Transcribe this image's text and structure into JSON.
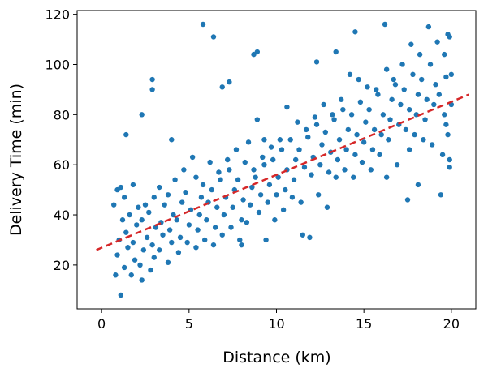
{
  "chart_data": {
    "type": "scatter",
    "title": "",
    "xlabel": "Distance (km)",
    "ylabel": "Delivery Time (min)",
    "xlim": [
      -1.4,
      21.4
    ],
    "ylim": [
      2.5,
      121.5
    ],
    "xticks": [
      0,
      5,
      10,
      15,
      20
    ],
    "yticks": [
      20,
      40,
      60,
      80,
      100,
      120
    ],
    "grid": false,
    "legend": "none",
    "colors": {
      "points": "#1f77b4",
      "trend": "#d62728",
      "axes": "#000000",
      "background": "#ffffff"
    },
    "series": [
      {
        "kind": "scatter",
        "points": [
          [
            1.1,
            8
          ],
          [
            0.8,
            16
          ],
          [
            0.9,
            24
          ],
          [
            1.0,
            30
          ],
          [
            1.2,
            38
          ],
          [
            0.7,
            44
          ],
          [
            0.9,
            50
          ],
          [
            1.1,
            51
          ],
          [
            1.3,
            19
          ],
          [
            1.5,
            27
          ],
          [
            1.4,
            33
          ],
          [
            1.6,
            40
          ],
          [
            1.3,
            47
          ],
          [
            1.4,
            72
          ],
          [
            1.7,
            16
          ],
          [
            1.9,
            22
          ],
          [
            1.8,
            29
          ],
          [
            2.0,
            36
          ],
          [
            2.1,
            43
          ],
          [
            1.8,
            52
          ],
          [
            2.3,
            14
          ],
          [
            2.2,
            20
          ],
          [
            2.4,
            26
          ],
          [
            2.6,
            31
          ],
          [
            2.3,
            38
          ],
          [
            2.5,
            44
          ],
          [
            2.3,
            80
          ],
          [
            2.8,
            18
          ],
          [
            3.0,
            23
          ],
          [
            2.9,
            28
          ],
          [
            3.1,
            35
          ],
          [
            2.7,
            41
          ],
          [
            3.0,
            47
          ],
          [
            2.9,
            90
          ],
          [
            2.9,
            94
          ],
          [
            3.3,
            26
          ],
          [
            3.5,
            32
          ],
          [
            3.4,
            37
          ],
          [
            3.6,
            44
          ],
          [
            3.3,
            51
          ],
          [
            3.8,
            21
          ],
          [
            4.0,
            29
          ],
          [
            3.9,
            34
          ],
          [
            4.1,
            40
          ],
          [
            3.8,
            48
          ],
          [
            4.0,
            70
          ],
          [
            4.2,
            54
          ],
          [
            4.4,
            25
          ],
          [
            4.5,
            31
          ],
          [
            4.3,
            38
          ],
          [
            4.6,
            45
          ],
          [
            4.7,
            58
          ],
          [
            4.9,
            29
          ],
          [
            5.0,
            36
          ],
          [
            5.1,
            42
          ],
          [
            4.8,
            49
          ],
          [
            5.2,
            63
          ],
          [
            5.4,
            27
          ],
          [
            5.5,
            34
          ],
          [
            5.6,
            40
          ],
          [
            5.7,
            47
          ],
          [
            5.4,
            55
          ],
          [
            5.9,
            30
          ],
          [
            6.0,
            38
          ],
          [
            6.1,
            45
          ],
          [
            5.8,
            52
          ],
          [
            6.2,
            61
          ],
          [
            5.8,
            116
          ],
          [
            6.4,
            28
          ],
          [
            6.5,
            35
          ],
          [
            6.6,
            43
          ],
          [
            6.3,
            50
          ],
          [
            6.7,
            57
          ],
          [
            6.4,
            111
          ],
          [
            6.9,
            32
          ],
          [
            7.0,
            40
          ],
          [
            7.1,
            47
          ],
          [
            6.8,
            54
          ],
          [
            7.2,
            62
          ],
          [
            6.9,
            91
          ],
          [
            7.3,
            93
          ],
          [
            7.4,
            35
          ],
          [
            7.5,
            43
          ],
          [
            7.6,
            50
          ],
          [
            7.3,
            58
          ],
          [
            7.7,
            66
          ],
          [
            7.9,
            30
          ],
          [
            8.0,
            38
          ],
          [
            8.1,
            46
          ],
          [
            7.8,
            54
          ],
          [
            8.2,
            61
          ],
          [
            8.0,
            28
          ],
          [
            8.3,
            37
          ],
          [
            8.5,
            44
          ],
          [
            8.6,
            51
          ],
          [
            8.7,
            58
          ],
          [
            8.4,
            69
          ],
          [
            8.7,
            104
          ],
          [
            8.9,
            105
          ],
          [
            8.9,
            78
          ],
          [
            9.0,
            41
          ],
          [
            9.1,
            48
          ],
          [
            8.8,
            55
          ],
          [
            9.2,
            63
          ],
          [
            9.3,
            70
          ],
          [
            9.4,
            30
          ],
          [
            9.5,
            45
          ],
          [
            9.6,
            52
          ],
          [
            9.3,
            60
          ],
          [
            9.7,
            67
          ],
          [
            9.9,
            38
          ],
          [
            10.0,
            48
          ],
          [
            10.1,
            55
          ],
          [
            9.8,
            62
          ],
          [
            10.2,
            70
          ],
          [
            10.4,
            42
          ],
          [
            10.5,
            50
          ],
          [
            10.6,
            58
          ],
          [
            10.3,
            66
          ],
          [
            10.6,
            83
          ],
          [
            10.9,
            47
          ],
          [
            11.0,
            54
          ],
          [
            11.1,
            62
          ],
          [
            10.8,
            70
          ],
          [
            11.2,
            77
          ],
          [
            11.4,
            45
          ],
          [
            11.5,
            32
          ],
          [
            11.6,
            59
          ],
          [
            11.3,
            66
          ],
          [
            11.7,
            74
          ],
          [
            11.9,
            31
          ],
          [
            12.0,
            56
          ],
          [
            12.1,
            63
          ],
          [
            11.8,
            71
          ],
          [
            12.2,
            79
          ],
          [
            12.3,
            101
          ],
          [
            12.4,
            48
          ],
          [
            12.5,
            60
          ],
          [
            12.6,
            68
          ],
          [
            12.3,
            76
          ],
          [
            12.7,
            84
          ],
          [
            12.9,
            43
          ],
          [
            13.0,
            57
          ],
          [
            13.1,
            65
          ],
          [
            12.8,
            73
          ],
          [
            13.2,
            80
          ],
          [
            13.4,
            55
          ],
          [
            13.5,
            62
          ],
          [
            13.6,
            70
          ],
          [
            13.3,
            78
          ],
          [
            13.4,
            105
          ],
          [
            13.7,
            86
          ],
          [
            13.9,
            58
          ],
          [
            14.0,
            66
          ],
          [
            14.1,
            74
          ],
          [
            13.8,
            82
          ],
          [
            14.2,
            96
          ],
          [
            14.4,
            55
          ],
          [
            14.5,
            64
          ],
          [
            14.6,
            72
          ],
          [
            14.3,
            80
          ],
          [
            14.5,
            113
          ],
          [
            14.7,
            94
          ],
          [
            14.9,
            61
          ],
          [
            15.0,
            69
          ],
          [
            15.1,
            77
          ],
          [
            14.8,
            85
          ],
          [
            15.2,
            91
          ],
          [
            15.4,
            58
          ],
          [
            15.5,
            66
          ],
          [
            15.6,
            74
          ],
          [
            15.3,
            82
          ],
          [
            15.7,
            90
          ],
          [
            15.9,
            64
          ],
          [
            16.0,
            72
          ],
          [
            16.1,
            80
          ],
          [
            15.8,
            88
          ],
          [
            16.2,
            116
          ],
          [
            16.3,
            98
          ],
          [
            16.4,
            70
          ],
          [
            16.5,
            78
          ],
          [
            16.6,
            86
          ],
          [
            16.3,
            55
          ],
          [
            16.7,
            94
          ],
          [
            16.9,
            60
          ],
          [
            17.0,
            76
          ],
          [
            17.1,
            84
          ],
          [
            16.8,
            92
          ],
          [
            17.2,
            100
          ],
          [
            17.4,
            74
          ],
          [
            17.5,
            46
          ],
          [
            17.6,
            82
          ],
          [
            17.3,
            90
          ],
          [
            17.7,
            108
          ],
          [
            17.9,
            72
          ],
          [
            18.0,
            80
          ],
          [
            18.1,
            88
          ],
          [
            17.8,
            96
          ],
          [
            18.2,
            104
          ],
          [
            18.1,
            52
          ],
          [
            18.4,
            70
          ],
          [
            18.5,
            78
          ],
          [
            18.6,
            86
          ],
          [
            18.3,
            94
          ],
          [
            18.7,
            115
          ],
          [
            18.9,
            68
          ],
          [
            19.0,
            84
          ],
          [
            19.1,
            92
          ],
          [
            18.8,
            100
          ],
          [
            19.2,
            109
          ],
          [
            19.4,
            48
          ],
          [
            19.5,
            64
          ],
          [
            19.6,
            80
          ],
          [
            19.3,
            88
          ],
          [
            19.6,
            104
          ],
          [
            19.7,
            95
          ],
          [
            19.8,
            72
          ],
          [
            19.9,
            59
          ],
          [
            20.0,
            84
          ],
          [
            19.8,
            112
          ],
          [
            19.9,
            62
          ],
          [
            20.0,
            96
          ],
          [
            19.7,
            76
          ],
          [
            19.9,
            111
          ],
          [
            17.6,
            66
          ]
        ]
      },
      {
        "kind": "trend-line",
        "points": [
          [
            -0.3,
            26
          ],
          [
            21.0,
            88
          ]
        ]
      }
    ]
  }
}
